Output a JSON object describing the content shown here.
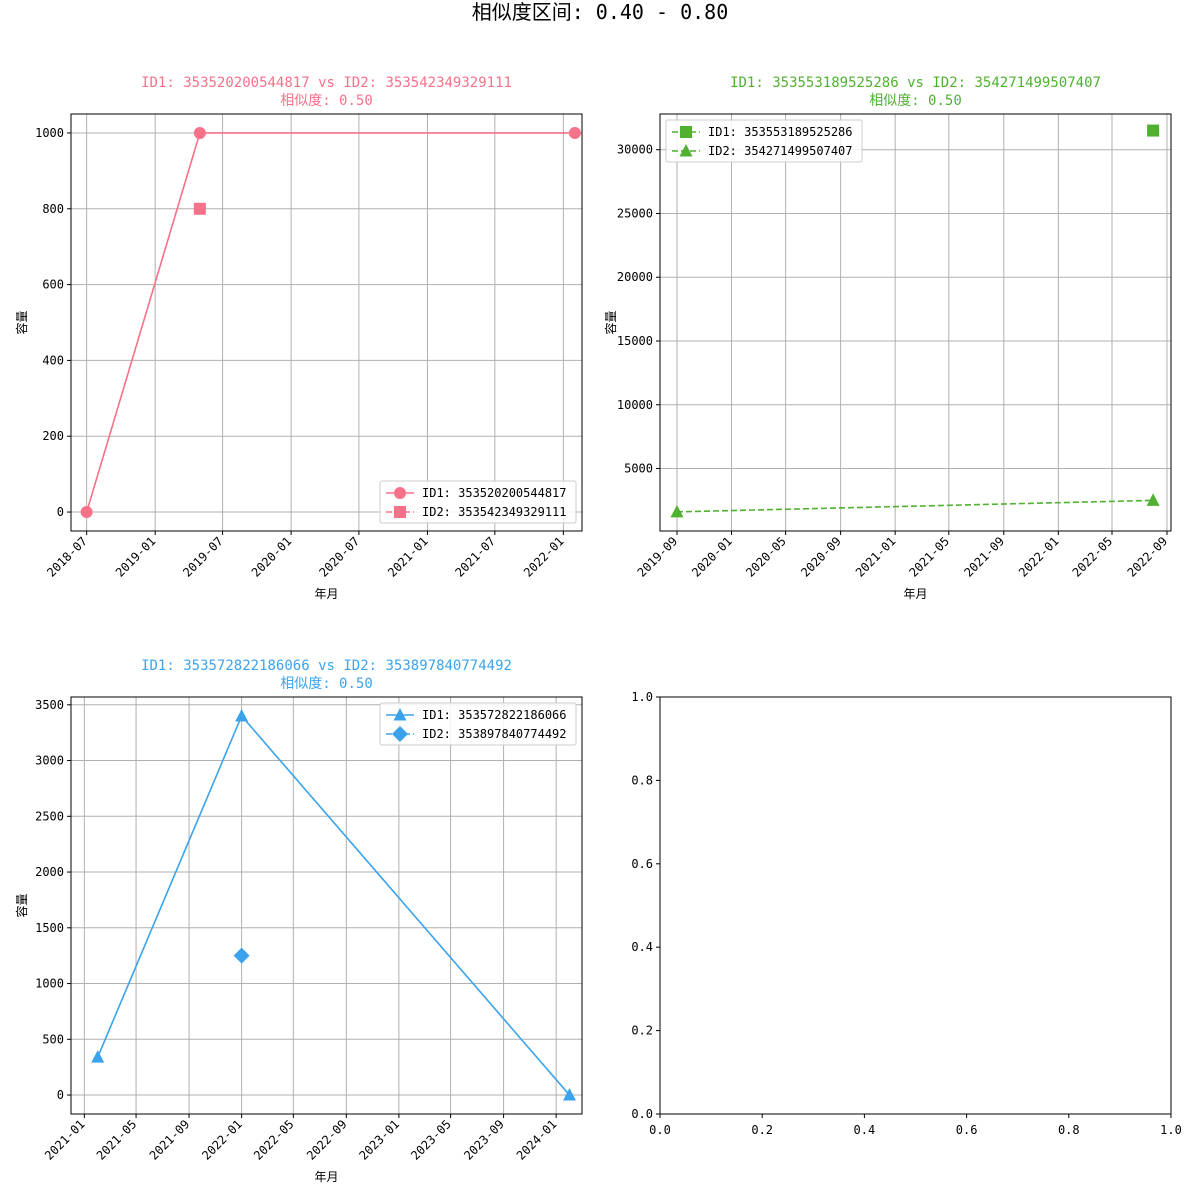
{
  "figure": {
    "suptitle": "相似度区间: 0.40 - 0.80"
  },
  "chart_data": [
    {
      "type": "line",
      "title": "ID1: 353520200544817 vs ID2: 353542349329111",
      "subtitle": "相似度: 0.50",
      "color": "#f77189",
      "xlabel": "年月",
      "ylabel": "容量",
      "x_type": "date",
      "xlim": [
        "2018-05-20",
        "2022-02-20"
      ],
      "ylim": [
        -50,
        1050
      ],
      "xticks": [
        "2018-07",
        "2019-01",
        "2019-07",
        "2020-01",
        "2020-07",
        "2021-01",
        "2021-07",
        "2022-01"
      ],
      "yticks": [
        0,
        200,
        400,
        600,
        800,
        1000
      ],
      "grid": true,
      "legend": "lower right",
      "series": [
        {
          "name": "ID1: 353520200544817",
          "marker": "circle",
          "linestyle": "solid",
          "x": [
            "2018-07-01",
            "2019-05-01",
            "2022-02-01"
          ],
          "y": [
            0,
            1000,
            1000
          ]
        },
        {
          "name": "ID2: 353542349329111",
          "marker": "square",
          "linestyle": "dashed",
          "x": [
            "2019-05-01"
          ],
          "y": [
            800
          ]
        }
      ]
    },
    {
      "type": "line",
      "title": "ID1: 353553189525286 vs ID2: 354271499507407",
      "subtitle": "相似度: 0.50",
      "color": "#50b131",
      "xlabel": "年月",
      "ylabel": "容量",
      "x_type": "date",
      "xlim": [
        "2019-07-25",
        "2022-09-10"
      ],
      "ylim": [
        100,
        32800
      ],
      "xticks": [
        "2019-09",
        "2020-01",
        "2020-05",
        "2020-09",
        "2021-01",
        "2021-05",
        "2021-09",
        "2022-01",
        "2022-05",
        "2022-09"
      ],
      "yticks": [
        5000,
        10000,
        15000,
        20000,
        25000,
        30000
      ],
      "grid": true,
      "legend": "upper left",
      "series": [
        {
          "name": "ID1: 353553189525286",
          "marker": "square",
          "linestyle": "dashed",
          "x": [
            "2022-08-01"
          ],
          "y": [
            31500
          ]
        },
        {
          "name": "ID2: 354271499507407",
          "marker": "triangle",
          "linestyle": "dashed",
          "x": [
            "2019-09-01",
            "2022-08-01"
          ],
          "y": [
            1600,
            2500
          ]
        }
      ]
    },
    {
      "type": "line",
      "title": "ID1: 353572822186066 vs ID2: 353897840774492",
      "subtitle": "相似度: 0.50",
      "color": "#3ba3ec",
      "xlabel": "年月",
      "ylabel": "容量",
      "x_type": "date",
      "xlim": [
        "2020-12-01",
        "2024-03-01"
      ],
      "ylim": [
        -170,
        3570
      ],
      "xticks": [
        "2021-01",
        "2021-05",
        "2021-09",
        "2022-01",
        "2022-05",
        "2022-09",
        "2023-01",
        "2023-05",
        "2023-09",
        "2024-01"
      ],
      "yticks": [
        0,
        500,
        1000,
        1500,
        2000,
        2500,
        3000,
        3500
      ],
      "grid": true,
      "legend": "upper right",
      "series": [
        {
          "name": "ID1: 353572822186066",
          "marker": "triangle",
          "linestyle": "solid",
          "x": [
            "2021-02-01",
            "2022-01-01",
            "2024-02-01"
          ],
          "y": [
            340,
            3400,
            0
          ]
        },
        {
          "name": "ID2: 353897840774492",
          "marker": "diamond",
          "linestyle": "dashed",
          "x": [
            "2022-01-01"
          ],
          "y": [
            1250
          ]
        }
      ]
    },
    {
      "type": "line",
      "title": "",
      "empty": true,
      "color": "#000000",
      "x_type": "number",
      "xlim": [
        0,
        1
      ],
      "ylim": [
        0,
        1
      ],
      "xticks": [
        "0.0",
        "0.2",
        "0.4",
        "0.6",
        "0.8",
        "1.0"
      ],
      "yticks": [
        "0.0",
        "0.2",
        "0.4",
        "0.6",
        "0.8",
        "1.0"
      ],
      "grid": false,
      "series": []
    }
  ]
}
